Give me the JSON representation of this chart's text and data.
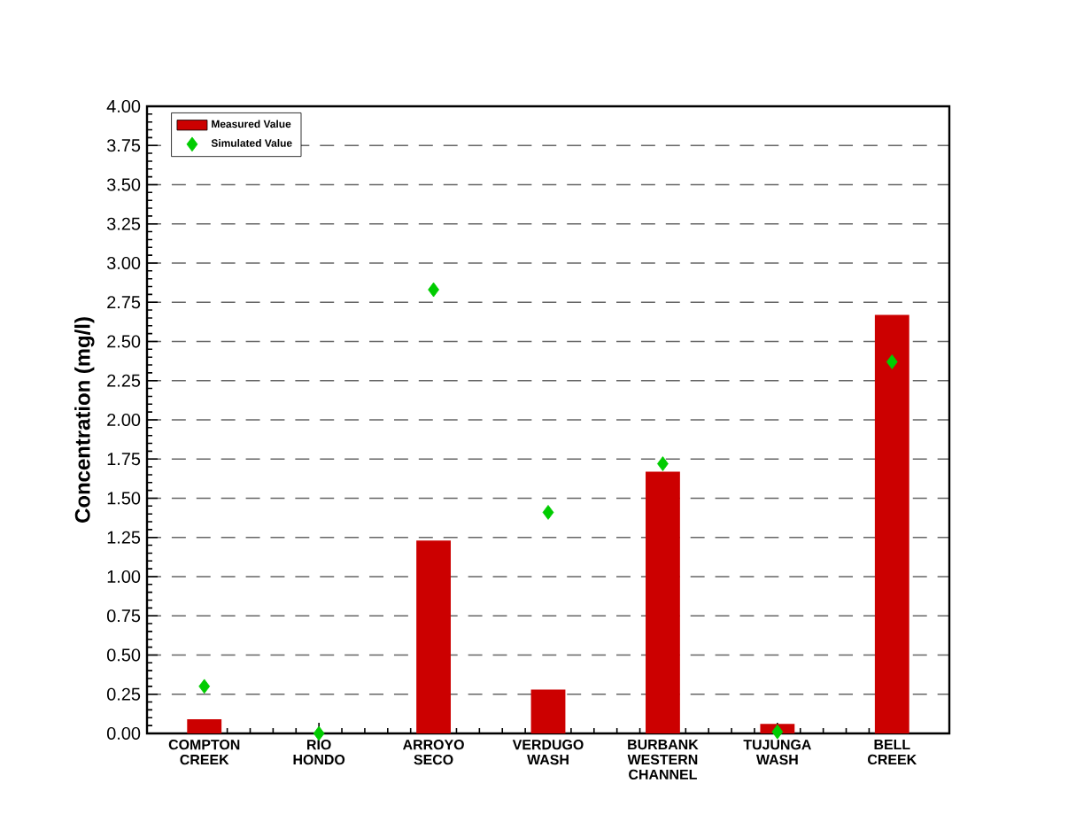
{
  "chart_data": {
    "type": "bar",
    "ylabel": "Concentration (mg/l)",
    "categories": [
      "COMPTON CREEK",
      "RIO HONDO",
      "ARROYO SECO",
      "VERDUGO WASH",
      "BURBANK WESTERN CHANNEL",
      "TUJUNGA WASH",
      "BELL CREEK"
    ],
    "series": [
      {
        "name": "Measured Value",
        "color": "#cc0000",
        "values": [
          0.09,
          0,
          1.23,
          0.28,
          1.67,
          0.06,
          2.67
        ]
      },
      {
        "name": "Simulated Value",
        "type": "scatter",
        "marker": "diamond",
        "color": "#00cc00",
        "values": [
          0.3,
          0.0,
          2.83,
          1.41,
          1.72,
          0.01,
          2.37
        ]
      }
    ],
    "ylim": [
      0,
      4
    ],
    "yticks": [
      {
        "value": 0,
        "label": "0.00"
      },
      {
        "value": 0.25,
        "label": "0.25"
      },
      {
        "value": 0.5,
        "label": "0.50"
      },
      {
        "value": 0.75,
        "label": "0.75"
      },
      {
        "value": 1,
        "label": "1.00"
      },
      {
        "value": 1.25,
        "label": "1.25"
      },
      {
        "value": 1.5,
        "label": "1.50"
      },
      {
        "value": 1.75,
        "label": "1.75"
      },
      {
        "value": 2,
        "label": "2.00"
      },
      {
        "value": 2.25,
        "label": "2.25"
      },
      {
        "value": 2.5,
        "label": "2.50"
      },
      {
        "value": 2.75,
        "label": "2.75"
      },
      {
        "value": 3,
        "label": "3.00"
      },
      {
        "value": 3.25,
        "label": "3.25"
      },
      {
        "value": 3.5,
        "label": "3.50"
      },
      {
        "value": 3.75,
        "label": "3.75"
      },
      {
        "value": 4,
        "label": "4.00"
      }
    ],
    "grid": "y",
    "legend": "top left"
  }
}
